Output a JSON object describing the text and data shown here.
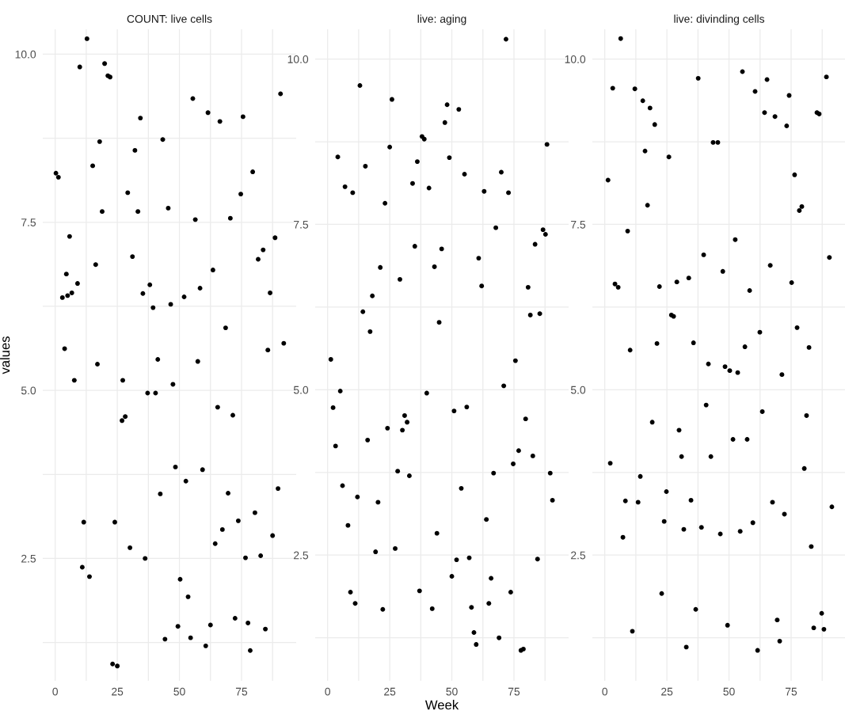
{
  "chart_data": [
    {
      "type": "scatter",
      "title": "COUNT: live cells",
      "ylabel": "values",
      "color": "#000000",
      "marker": "circle",
      "grid": true,
      "xlim": [
        -5,
        97
      ],
      "ylim": [
        0.68,
        10.37
      ],
      "xticks": [
        0,
        {
          "value": 12.5,
          "label": null
        },
        25,
        {
          "value": 37.5,
          "label": null
        },
        50,
        {
          "value": 62.5,
          "label": null
        },
        75,
        {
          "value": 87.5,
          "label": null
        }
      ],
      "yticks": [
        {
          "value": 1.25,
          "label": null
        },
        {
          "value": 2.5,
          "label": "2.5"
        },
        {
          "value": 3.75,
          "label": null
        },
        {
          "value": 5,
          "label": "5.0"
        },
        {
          "value": 6.25,
          "label": null
        },
        {
          "value": 7.5,
          "label": "7.5"
        },
        {
          "value": 8.75,
          "label": null
        },
        {
          "value": 10,
          "label": "10.0"
        }
      ],
      "x": [
        0.3,
        1.3,
        2.9,
        3.8,
        4.5,
        5,
        5.8,
        6.7,
        7.7,
        9,
        9.9,
        11.5,
        10.9,
        12.8,
        13.8,
        15.1,
        16.3,
        17,
        17.9,
        18.9,
        19.9,
        21.2,
        22.1,
        23.1,
        24,
        25,
        26.9,
        27.2,
        28.2,
        29.2,
        30.1,
        31.1,
        32.1,
        33.3,
        34.3,
        35.3,
        36.2,
        37.2,
        38.1,
        39.4,
        40.4,
        41.3,
        42.3,
        43.3,
        44.2,
        45.5,
        46.5,
        47.4,
        48.4,
        49.4,
        50.3,
        51.9,
        52.6,
        53.5,
        54.5,
        55.4,
        56.4,
        57.4,
        58.3,
        59.3,
        60.6,
        61.5,
        62.5,
        63.5,
        64.4,
        65.4,
        66.3,
        67.3,
        68.6,
        69.6,
        70.5,
        71.5,
        72.4,
        73.7,
        74.7,
        75.6,
        76.6,
        77.6,
        78.5,
        79.5,
        80.4,
        81.7,
        82.7,
        83.7,
        84.6,
        85.6,
        86.5,
        87.5,
        88.5,
        89.7,
        90.7,
        92
      ],
      "values": [
        8.23,
        8.17,
        6.38,
        5.62,
        6.73,
        6.41,
        7.29,
        6.45,
        5.15,
        6.59,
        9.81,
        3.04,
        2.37,
        10.23,
        2.23,
        8.34,
        6.87,
        5.39,
        8.7,
        7.66,
        9.86,
        9.68,
        9.66,
        0.93,
        3.04,
        0.9,
        4.55,
        5.15,
        4.61,
        7.94,
        2.66,
        6.99,
        8.57,
        7.66,
        9.05,
        6.44,
        2.5,
        4.96,
        6.57,
        6.23,
        4.96,
        5.46,
        3.46,
        8.73,
        1.3,
        7.71,
        6.28,
        5.09,
        3.86,
        1.49,
        2.19,
        6.39,
        3.65,
        1.93,
        1.32,
        9.34,
        7.54,
        5.43,
        6.52,
        3.82,
        1.2,
        9.13,
        1.51,
        6.79,
        2.72,
        4.75,
        9.0,
        2.93,
        5.93,
        3.47,
        7.56,
        4.63,
        1.61,
        3.06,
        7.92,
        9.07,
        2.51,
        1.54,
        1.13,
        8.25,
        3.18,
        6.95,
        2.54,
        7.09,
        1.45,
        5.6,
        6.45,
        2.84,
        7.27,
        3.54,
        9.41,
        5.7
      ]
    },
    {
      "type": "scatter",
      "title": "live: aging",
      "xlabel": "Week",
      "color": "#000000",
      "marker": "circle",
      "grid": true,
      "xlim": [
        -5,
        97
      ],
      "ylim": [
        0.6,
        10.45
      ],
      "xticks": [
        0,
        {
          "value": 12.5,
          "label": null
        },
        25,
        {
          "value": 37.5,
          "label": null
        },
        50,
        {
          "value": 62.5,
          "label": null
        },
        75,
        {
          "value": 87.5,
          "label": null
        }
      ],
      "yticks": [
        {
          "value": 1.25,
          "label": null
        },
        {
          "value": 2.5,
          "label": "2.5"
        },
        {
          "value": 3.75,
          "label": null
        },
        {
          "value": 5,
          "label": "5.0"
        },
        {
          "value": 6.25,
          "label": null
        },
        {
          "value": 7.5,
          "label": "7.5"
        },
        {
          "value": 8.75,
          "label": null
        },
        {
          "value": 10,
          "label": "10.0"
        }
      ],
      "x": [
        1.3,
        2.2,
        3.2,
        4.1,
        5.1,
        6,
        7,
        8.2,
        9.2,
        10.1,
        11.1,
        12,
        13,
        14.2,
        15.2,
        16.1,
        17.1,
        18,
        19.3,
        20.3,
        21.2,
        22.2,
        23.1,
        24.1,
        25,
        25.9,
        27.2,
        28.2,
        29.1,
        30.1,
        31,
        32,
        32.9,
        34.2,
        35.1,
        36.1,
        37,
        38,
        38.9,
        39.9,
        40.8,
        42.1,
        43,
        44,
        44.9,
        45.9,
        47.2,
        48.1,
        49,
        50,
        50.9,
        51.9,
        52.8,
        53.8,
        55.1,
        56,
        57,
        57.9,
        58.9,
        59.8,
        60.8,
        62,
        63,
        63.9,
        64.9,
        65.8,
        66.8,
        67.7,
        69,
        69.9,
        70.9,
        71.8,
        72.8,
        73.7,
        74.7,
        75.6,
        76.9,
        77.8,
        78.8,
        79.7,
        80.7,
        81.6,
        82.6,
        83.5,
        84.5,
        85.4,
        86.7,
        87.7,
        88.3,
        89.6,
        90.5
      ],
      "values": [
        5.46,
        4.73,
        4.15,
        8.52,
        4.98,
        3.55,
        8.07,
        2.95,
        1.94,
        7.98,
        1.77,
        3.38,
        9.6,
        6.18,
        8.38,
        4.24,
        5.88,
        6.42,
        2.55,
        3.3,
        6.85,
        1.68,
        7.82,
        4.42,
        8.67,
        9.39,
        2.6,
        3.77,
        6.67,
        4.39,
        4.61,
        4.51,
        3.7,
        8.12,
        7.17,
        8.45,
        1.96,
        8.83,
        8.79,
        4.95,
        8.05,
        1.69,
        6.86,
        2.83,
        6.02,
        7.13,
        9.04,
        9.31,
        8.51,
        2.18,
        4.68,
        2.43,
        9.24,
        3.51,
        8.26,
        4.74,
        2.46,
        1.71,
        1.33,
        1.15,
        6.99,
        6.57,
        8.0,
        3.04,
        1.77,
        2.15,
        3.74,
        7.45,
        1.25,
        8.29,
        5.06,
        10.3,
        7.98,
        1.94,
        3.88,
        5.44,
        4.08,
        1.06,
        1.08,
        4.56,
        6.55,
        6.13,
        4.0,
        7.2,
        2.44,
        6.15,
        7.42,
        7.35,
        8.71,
        3.74,
        3.33
      ]
    },
    {
      "type": "scatter",
      "title": "live: divinding cells",
      "color": "#000000",
      "marker": "circle",
      "grid": true,
      "xlim": [
        -5,
        97
      ],
      "ylim": [
        0.6,
        10.45
      ],
      "xticks": [
        0,
        {
          "value": 12.5,
          "label": null
        },
        25,
        {
          "value": 37.5,
          "label": null
        },
        50,
        {
          "value": 62.5,
          "label": null
        },
        75,
        {
          "value": 87.5,
          "label": null
        }
      ],
      "yticks": [
        {
          "value": 1.25,
          "label": null
        },
        {
          "value": 2.5,
          "label": "2.5"
        },
        {
          "value": 3.75,
          "label": null
        },
        {
          "value": 5,
          "label": "5.0"
        },
        {
          "value": 6.25,
          "label": null
        },
        {
          "value": 7.5,
          "label": "7.5"
        },
        {
          "value": 8.75,
          "label": null
        },
        {
          "value": 10,
          "label": "10.0"
        }
      ],
      "x": [
        1.3,
        2.2,
        3.2,
        4.1,
        5.4,
        6.4,
        7.3,
        8.3,
        9.2,
        10.2,
        11.1,
        12.1,
        13.4,
        14.3,
        15.3,
        16.2,
        17.2,
        18.2,
        19.1,
        20.1,
        21,
        22,
        22.9,
        23.9,
        24.8,
        25.8,
        26.8,
        27.7,
        29,
        29.9,
        30.9,
        31.8,
        32.8,
        33.8,
        34.7,
        35.7,
        36.6,
        37.6,
        38.9,
        39.8,
        40.8,
        41.7,
        42.7,
        43.6,
        45.5,
        46.5,
        47.5,
        48.4,
        49.4,
        50.3,
        51.6,
        52.5,
        53.5,
        54.5,
        55.4,
        56.4,
        57.3,
        58.3,
        59.6,
        60.5,
        61.5,
        62.4,
        63.4,
        64.3,
        65.3,
        66.6,
        67.5,
        68.5,
        69.4,
        70.4,
        71.3,
        72.3,
        73.2,
        74.2,
        75.2,
        76.4,
        77.4,
        78.3,
        79.3,
        80.3,
        81.2,
        82.2,
        83.1,
        84.1,
        85.4,
        86.3,
        87.3,
        88.2,
        89.2,
        90.4,
        91.4
      ],
      "values": [
        8.17,
        3.89,
        9.56,
        6.6,
        6.55,
        10.31,
        2.77,
        3.32,
        7.4,
        5.6,
        1.35,
        9.55,
        3.3,
        3.69,
        9.37,
        8.61,
        7.79,
        9.26,
        4.51,
        9.01,
        5.7,
        6.56,
        1.92,
        3.01,
        3.46,
        8.52,
        6.13,
        6.11,
        6.63,
        4.39,
        3.99,
        2.89,
        1.11,
        6.69,
        3.33,
        5.71,
        1.68,
        9.71,
        2.92,
        7.04,
        4.77,
        5.39,
        3.99,
        8.74,
        8.74,
        2.82,
        6.79,
        5.35,
        1.44,
        5.29,
        4.25,
        7.27,
        5.26,
        2.86,
        9.81,
        5.65,
        4.25,
        6.5,
        2.99,
        9.51,
        1.06,
        5.87,
        4.67,
        9.19,
        9.69,
        6.88,
        3.3,
        9.13,
        1.52,
        1.2,
        5.23,
        3.12,
        8.99,
        9.45,
        6.62,
        8.25,
        5.94,
        7.71,
        7.77,
        3.81,
        4.61,
        5.64,
        2.63,
        1.4,
        9.19,
        9.17,
        1.62,
        1.38,
        9.73,
        7.0,
        3.23
      ]
    }
  ]
}
